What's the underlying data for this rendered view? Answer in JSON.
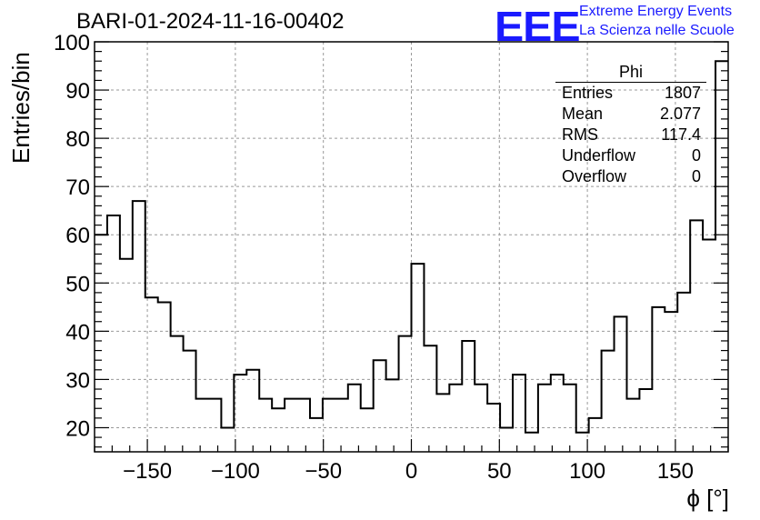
{
  "title": "BARI-01-2024-11-16-00402",
  "logo": {
    "text": "EEE",
    "line1": "Extreme Energy Events",
    "line2": "La Scienza nelle Scuole",
    "color": "#1a1aff"
  },
  "stats": {
    "title": "Phi",
    "rows": [
      {
        "label": "Entries",
        "value": "1807"
      },
      {
        "label": "Mean",
        "value": "2.077"
      },
      {
        "label": "RMS",
        "value": "117.4"
      },
      {
        "label": "Underflow",
        "value": "0"
      },
      {
        "label": "Overflow",
        "value": "0"
      }
    ]
  },
  "chart_data": {
    "type": "histogram",
    "title": "BARI-01-2024-11-16-00402",
    "xlabel": "ϕ [°]",
    "ylabel": "Entries/bin",
    "xlim": [
      -180,
      180
    ],
    "ylim": [
      15,
      100
    ],
    "bin_width": 7.2,
    "x_ticks": [
      -150,
      -100,
      -50,
      0,
      50,
      100,
      150
    ],
    "x_tick_labels": [
      "−150",
      "−100",
      "−50",
      "0",
      "50",
      "100",
      "150"
    ],
    "y_ticks": [
      20,
      30,
      40,
      50,
      60,
      70,
      80,
      90,
      100
    ],
    "y_tick_labels": [
      "20",
      "30",
      "40",
      "50",
      "60",
      "70",
      "80",
      "90",
      "100"
    ],
    "grid": true,
    "values": [
      60,
      64,
      55,
      67,
      47,
      46,
      39,
      36,
      26,
      26,
      20,
      31,
      32,
      26,
      24,
      26,
      26,
      22,
      26,
      26,
      29,
      24,
      34,
      30,
      39,
      54,
      37,
      27,
      29,
      38,
      29,
      25,
      20,
      31,
      19,
      29,
      31,
      29,
      19,
      22,
      36,
      43,
      26,
      28,
      45,
      44,
      48,
      63,
      59,
      96
    ],
    "line_color": "#000000"
  }
}
